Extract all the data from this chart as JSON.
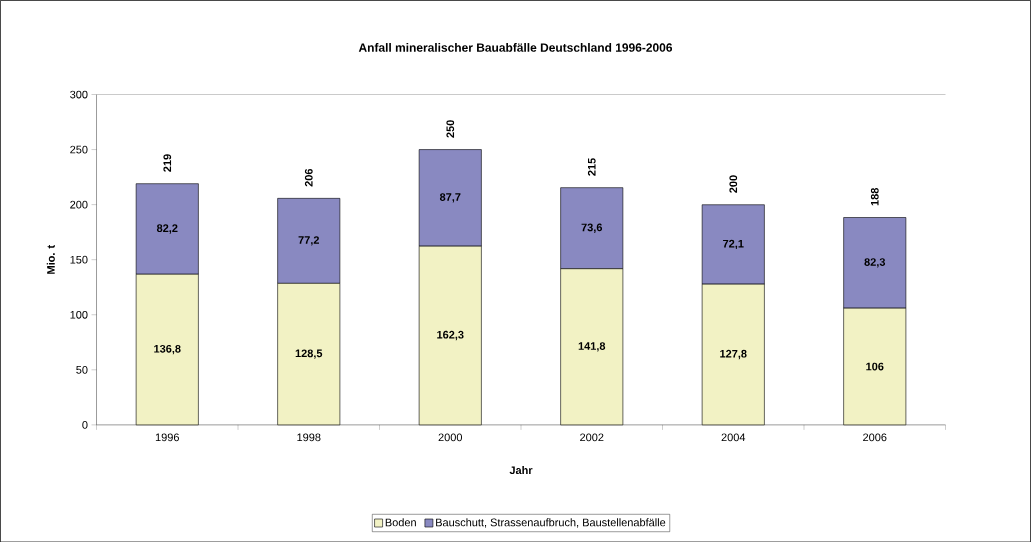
{
  "chart_data": {
    "type": "bar",
    "title": "Anfall mineralischer Bauabfälle Deutschland 1996-2006",
    "xlabel": "Jahr",
    "ylabel": "Mio. t",
    "categories": [
      "1996",
      "1998",
      "2000",
      "2002",
      "2004",
      "2006"
    ],
    "series": [
      {
        "name": "Boden",
        "color": "#f2f2c4",
        "values": [
          136.8,
          128.5,
          162.3,
          141.8,
          127.8,
          106
        ],
        "value_labels": [
          "136,8",
          "128,5",
          "162,3",
          "141,8",
          "127,8",
          "106"
        ]
      },
      {
        "name": "Bauschutt, Strassenaufbruch, Baustellenabfälle",
        "color": "#8989c1",
        "values": [
          82.2,
          77.2,
          87.7,
          73.6,
          72.1,
          82.3
        ],
        "value_labels": [
          "82,2",
          "77,2",
          "87,7",
          "73,6",
          "72,1",
          "82,3"
        ]
      }
    ],
    "stacked": true,
    "totals": [
      "219",
      "206",
      "250",
      "215",
      "200",
      "188"
    ],
    "ylim": [
      0,
      300
    ],
    "yticks": [
      0,
      50,
      100,
      150,
      200,
      250,
      300
    ],
    "legend": "bottom"
  }
}
